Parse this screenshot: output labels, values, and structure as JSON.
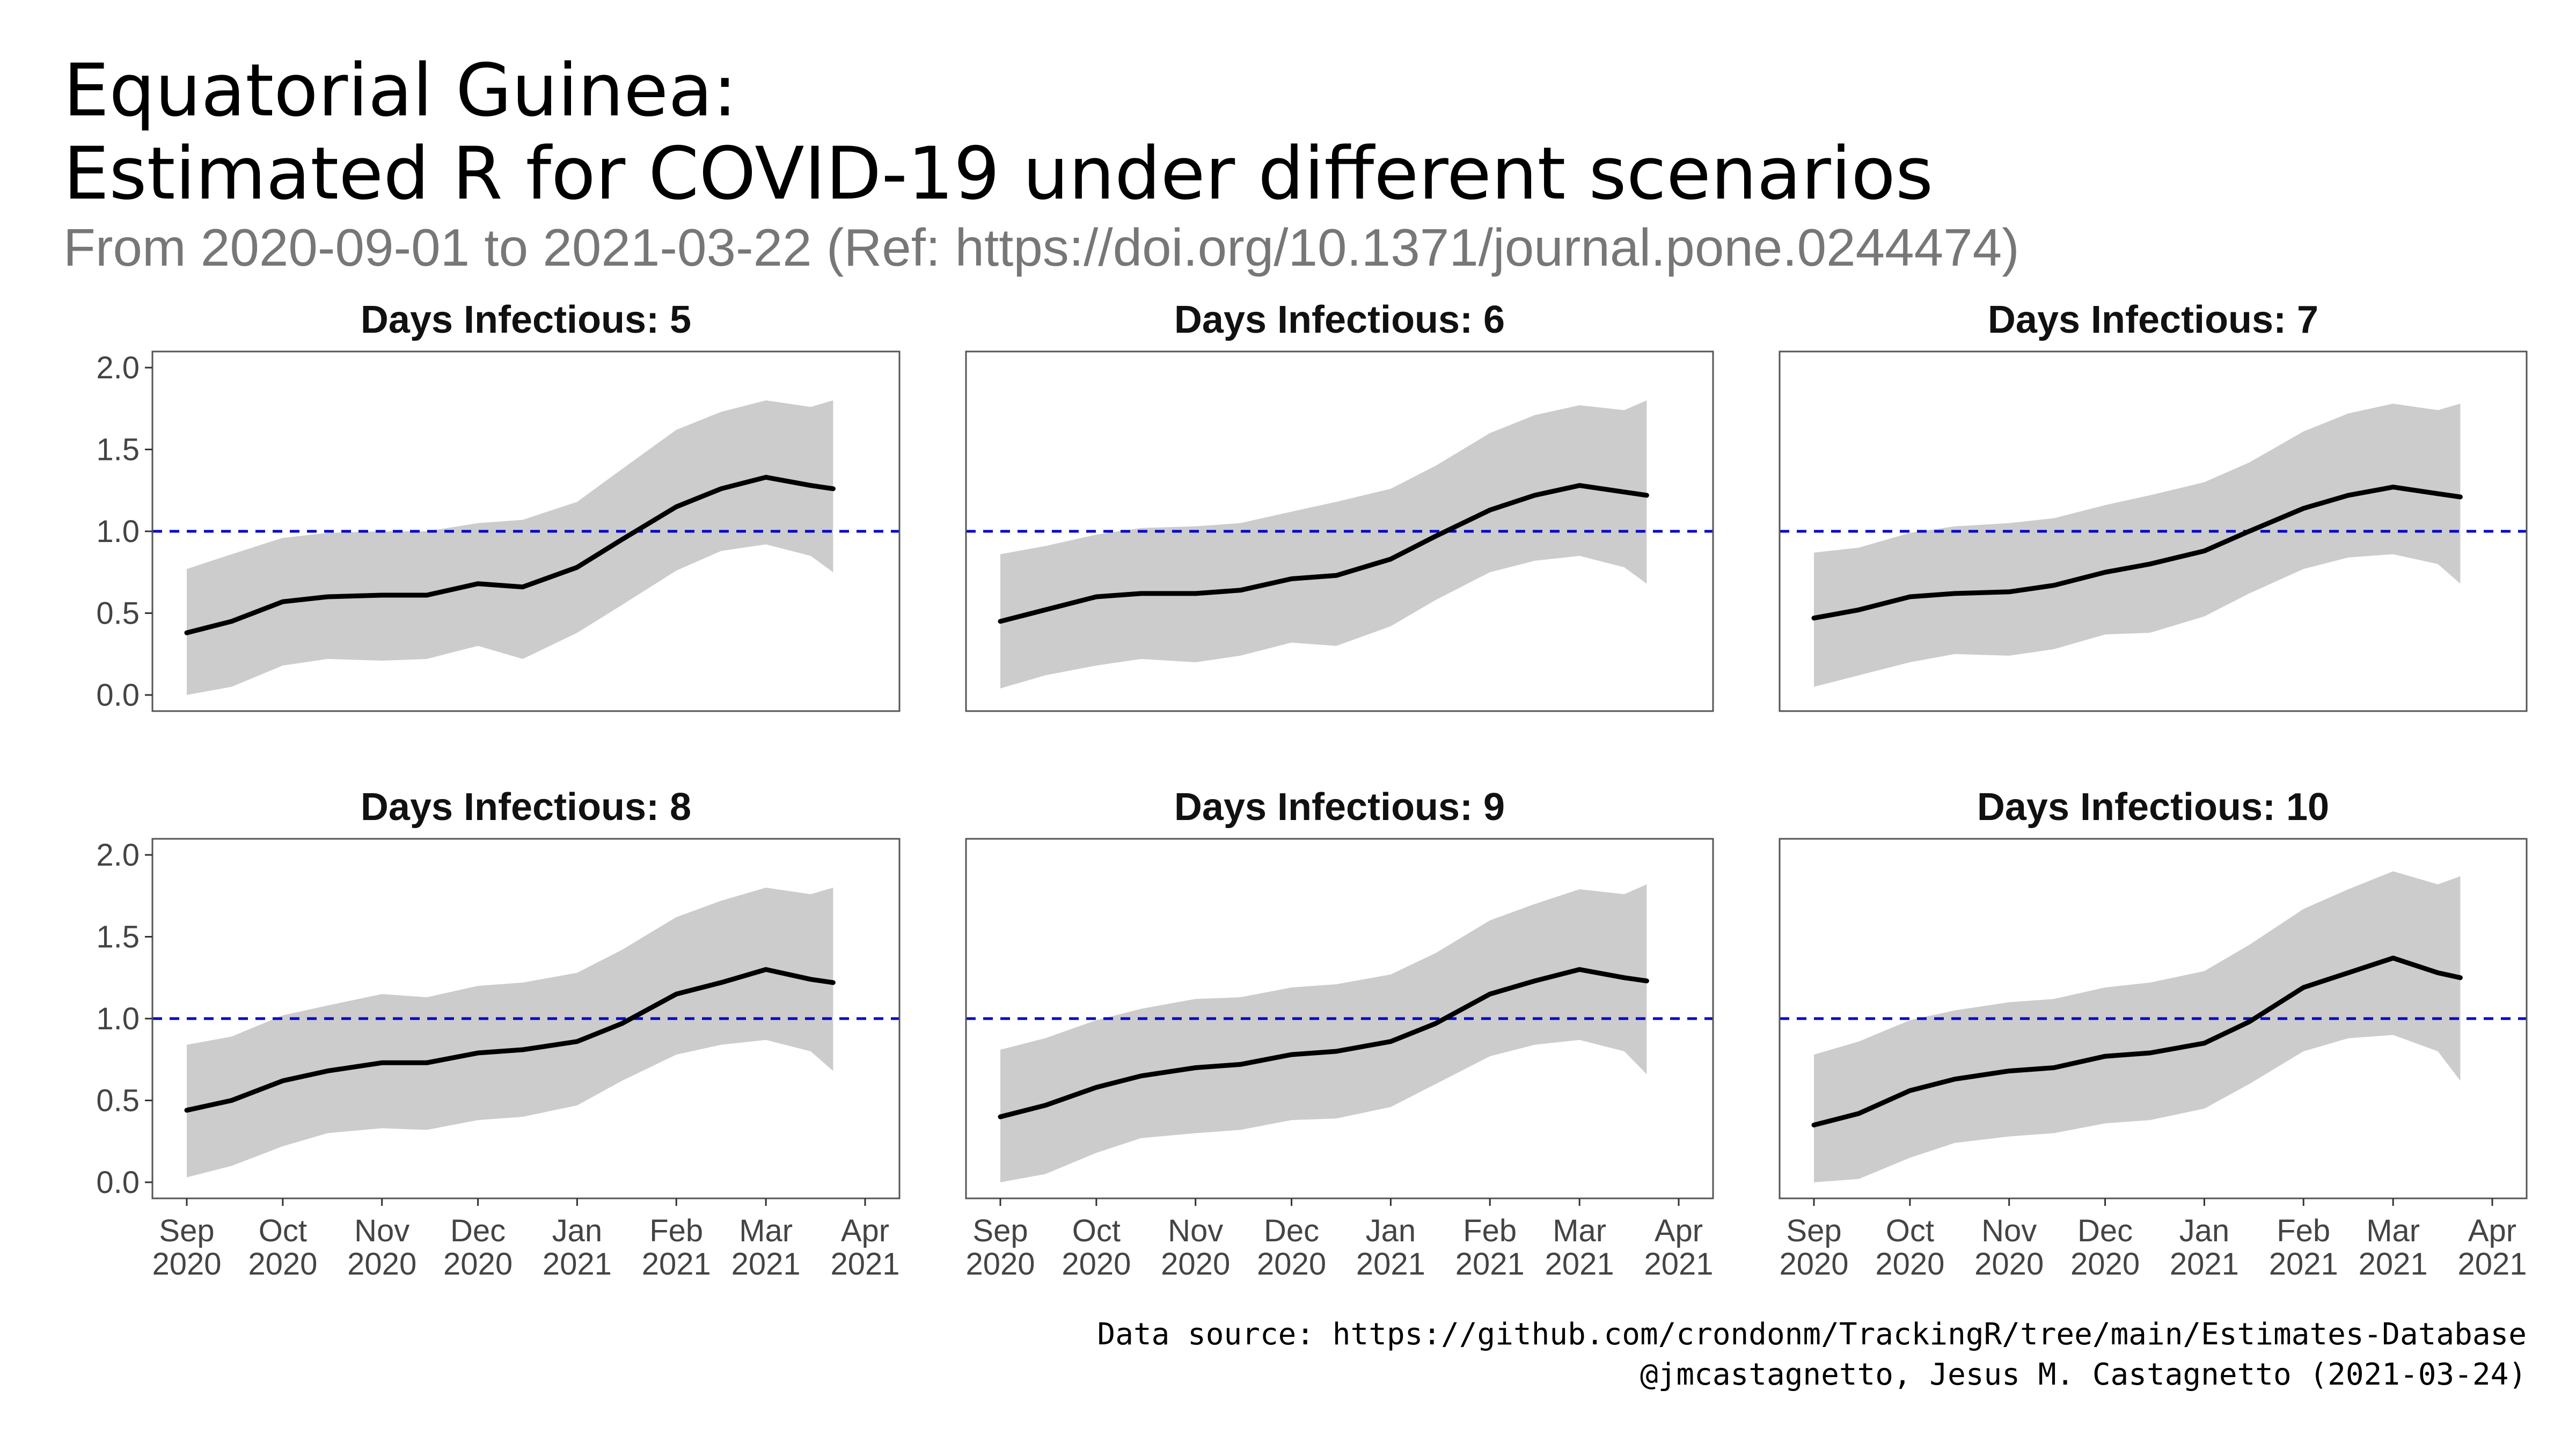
{
  "title_line1": "Equatorial Guinea:",
  "title_line2": "Estimated R for COVID-19 under different scenarios",
  "subtitle": "From 2020-09-01 to 2021-03-22 (Ref: https://doi.org/10.1371/journal.pone.0244474)",
  "caption_line1": "Data source: https://github.com/crondonm/TrackingR/tree/main/Estimates-Database",
  "caption_line2": "@jmcastagnetto, Jesus M. Castagnetto (2021-03-24)",
  "colors": {
    "line": "#000000",
    "ribbon": "#cccccc",
    "reference": "#0000cc",
    "panel_border": "#555555"
  },
  "chart_data": {
    "type": "line",
    "x_range": [
      "2020-09-01",
      "2021-04-01"
    ],
    "ylim": [
      0,
      2
    ],
    "y_ticks": [
      0.0,
      0.5,
      1.0,
      1.5,
      2.0
    ],
    "y_tick_labels": [
      "0.0",
      "0.5",
      "1.0",
      "1.5",
      "2.0"
    ],
    "x_ticks": [
      "2020-09-01",
      "2020-10-01",
      "2020-11-01",
      "2020-12-01",
      "2021-01-01",
      "2021-02-01",
      "2021-03-01",
      "2021-04-01"
    ],
    "x_tick_labels": [
      [
        "Sep",
        "2020"
      ],
      [
        "Oct",
        "2020"
      ],
      [
        "Nov",
        "2020"
      ],
      [
        "Dec",
        "2020"
      ],
      [
        "Jan",
        "2021"
      ],
      [
        "Feb",
        "2021"
      ],
      [
        "Mar",
        "2021"
      ],
      [
        "Apr",
        "2021"
      ]
    ],
    "reference_line": 1.0,
    "dates": [
      "2020-09-01",
      "2020-09-15",
      "2020-10-01",
      "2020-10-15",
      "2020-11-01",
      "2020-11-15",
      "2020-12-01",
      "2020-12-15",
      "2021-01-01",
      "2021-01-15",
      "2021-02-01",
      "2021-02-15",
      "2021-03-01",
      "2021-03-15",
      "2021-03-22"
    ],
    "panels": [
      {
        "title": "Days Infectious: 5",
        "r": [
          0.38,
          0.45,
          0.57,
          0.6,
          0.61,
          0.61,
          0.68,
          0.66,
          0.78,
          0.95,
          1.15,
          1.26,
          1.33,
          1.28,
          1.26
        ],
        "lower": [
          0.0,
          0.05,
          0.18,
          0.22,
          0.21,
          0.22,
          0.3,
          0.22,
          0.38,
          0.55,
          0.76,
          0.88,
          0.92,
          0.85,
          0.75
        ],
        "upper": [
          0.77,
          0.86,
          0.96,
          0.99,
          1.0,
          1.0,
          1.05,
          1.07,
          1.18,
          1.38,
          1.62,
          1.73,
          1.8,
          1.76,
          1.8
        ]
      },
      {
        "title": "Days Infectious: 6",
        "r": [
          0.45,
          0.52,
          0.6,
          0.62,
          0.62,
          0.64,
          0.71,
          0.73,
          0.83,
          0.97,
          1.13,
          1.22,
          1.28,
          1.24,
          1.22
        ],
        "lower": [
          0.04,
          0.12,
          0.18,
          0.22,
          0.2,
          0.24,
          0.32,
          0.3,
          0.42,
          0.58,
          0.75,
          0.82,
          0.85,
          0.78,
          0.68
        ],
        "upper": [
          0.86,
          0.91,
          0.98,
          1.02,
          1.03,
          1.05,
          1.12,
          1.18,
          1.26,
          1.4,
          1.6,
          1.71,
          1.77,
          1.74,
          1.8
        ]
      },
      {
        "title": "Days Infectious: 7",
        "r": [
          0.47,
          0.52,
          0.6,
          0.62,
          0.63,
          0.67,
          0.75,
          0.8,
          0.88,
          1.0,
          1.14,
          1.22,
          1.27,
          1.23,
          1.21
        ],
        "lower": [
          0.05,
          0.12,
          0.2,
          0.25,
          0.24,
          0.28,
          0.37,
          0.38,
          0.48,
          0.62,
          0.77,
          0.84,
          0.86,
          0.8,
          0.68
        ],
        "upper": [
          0.87,
          0.9,
          0.99,
          1.03,
          1.05,
          1.08,
          1.16,
          1.22,
          1.3,
          1.42,
          1.61,
          1.72,
          1.78,
          1.74,
          1.78
        ]
      },
      {
        "title": "Days Infectious: 8",
        "r": [
          0.44,
          0.5,
          0.62,
          0.68,
          0.73,
          0.73,
          0.79,
          0.81,
          0.86,
          0.97,
          1.15,
          1.22,
          1.3,
          1.24,
          1.22
        ],
        "lower": [
          0.03,
          0.1,
          0.22,
          0.3,
          0.33,
          0.32,
          0.38,
          0.4,
          0.47,
          0.62,
          0.78,
          0.84,
          0.87,
          0.8,
          0.68
        ],
        "upper": [
          0.84,
          0.89,
          1.02,
          1.08,
          1.15,
          1.13,
          1.2,
          1.22,
          1.28,
          1.42,
          1.62,
          1.72,
          1.8,
          1.76,
          1.8
        ]
      },
      {
        "title": "Days Infectious: 9",
        "r": [
          0.4,
          0.47,
          0.58,
          0.65,
          0.7,
          0.72,
          0.78,
          0.8,
          0.86,
          0.97,
          1.15,
          1.23,
          1.3,
          1.25,
          1.23
        ],
        "lower": [
          0.0,
          0.05,
          0.18,
          0.27,
          0.3,
          0.32,
          0.38,
          0.39,
          0.46,
          0.6,
          0.77,
          0.84,
          0.87,
          0.8,
          0.66
        ],
        "upper": [
          0.81,
          0.88,
          0.99,
          1.06,
          1.12,
          1.13,
          1.19,
          1.21,
          1.27,
          1.4,
          1.6,
          1.7,
          1.79,
          1.76,
          1.82
        ]
      },
      {
        "title": "Days Infectious: 10",
        "r": [
          0.35,
          0.42,
          0.56,
          0.63,
          0.68,
          0.7,
          0.77,
          0.79,
          0.85,
          0.98,
          1.19,
          1.28,
          1.37,
          1.28,
          1.25
        ],
        "lower": [
          0.0,
          0.02,
          0.15,
          0.24,
          0.28,
          0.3,
          0.36,
          0.38,
          0.45,
          0.6,
          0.8,
          0.88,
          0.9,
          0.8,
          0.62
        ],
        "upper": [
          0.78,
          0.86,
          0.99,
          1.05,
          1.1,
          1.12,
          1.19,
          1.22,
          1.29,
          1.45,
          1.67,
          1.79,
          1.9,
          1.82,
          1.87
        ]
      }
    ]
  }
}
